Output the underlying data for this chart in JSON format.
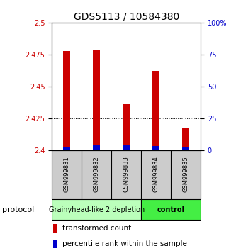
{
  "title": "GDS5113 / 10584380",
  "samples": [
    "GSM999831",
    "GSM999832",
    "GSM999833",
    "GSM999834",
    "GSM999835"
  ],
  "transformed_counts": [
    2.478,
    2.479,
    2.437,
    2.462,
    2.418
  ],
  "percentile_ranks": [
    3.0,
    4.0,
    4.5,
    3.5,
    3.0
  ],
  "base_value": 2.4,
  "ylim_left": [
    2.4,
    2.5
  ],
  "ylim_right": [
    0,
    100
  ],
  "yticks_left": [
    2.4,
    2.425,
    2.45,
    2.475,
    2.5
  ],
  "yticks_right": [
    0,
    25,
    50,
    75,
    100
  ],
  "bar_width": 0.25,
  "red_color": "#cc0000",
  "blue_color": "#0000cc",
  "groups": [
    {
      "label": "Grainyhead-like 2 depletion",
      "samples_idx": [
        0,
        1,
        2
      ],
      "color": "#bbffbb",
      "fontweight": "normal"
    },
    {
      "label": "control",
      "samples_idx": [
        3,
        4
      ],
      "color": "#44ee44",
      "fontweight": "bold"
    }
  ],
  "protocol_label": "protocol",
  "legend_red": "transformed count",
  "legend_blue": "percentile rank within the sample",
  "sample_box_color": "#cccccc",
  "title_fontsize": 10,
  "tick_fontsize": 7,
  "group_label_fontsize": 7,
  "legend_fontsize": 7.5
}
